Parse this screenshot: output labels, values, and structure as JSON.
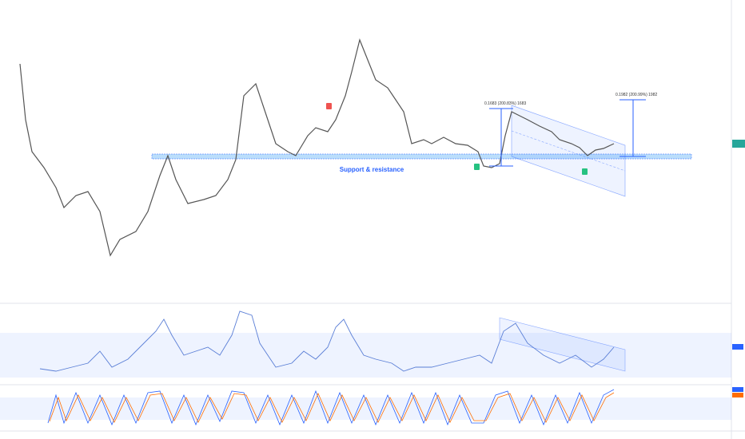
{
  "annotations": {
    "support": "Support & resistance",
    "measure_left": "0.1683 (200.83%) 1683",
    "measure_right": "0.1982 (200.99%) 1982"
  }
}
